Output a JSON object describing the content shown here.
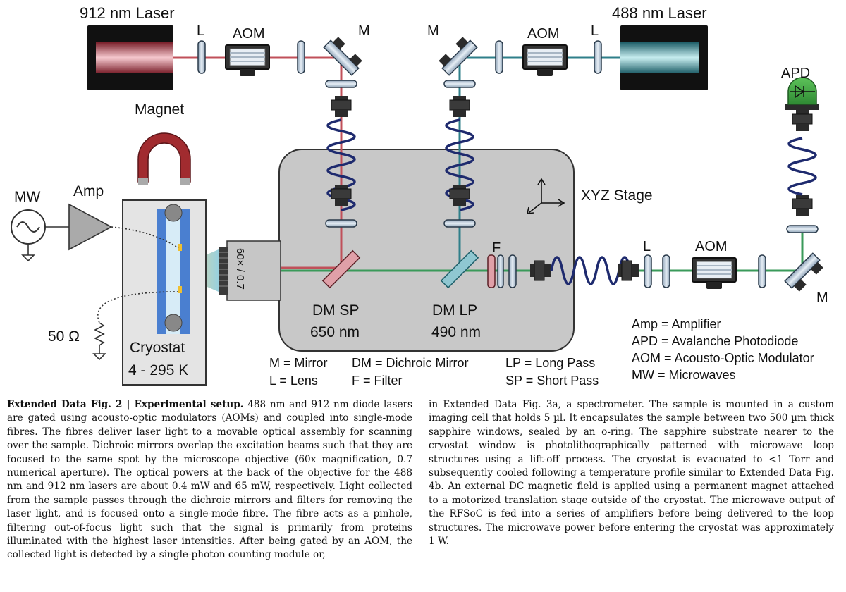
{
  "figure": {
    "lasers": {
      "left": "912 nm Laser",
      "right": "488 nm Laser"
    },
    "abbr": {
      "lens": "L",
      "mirror": "M",
      "aom": "AOM",
      "filter": "F",
      "apd": "APD",
      "amp": "Amp",
      "mw": "MW"
    },
    "magnet": "Magnet",
    "resistor": "50 Ω",
    "cryostat": {
      "name": "Cryostat",
      "range": "4 - 295 K"
    },
    "objective": "60× / 0.7",
    "stage": "XYZ Stage",
    "dm_sp": {
      "name": "DM SP",
      "wl": "650 nm"
    },
    "dm_lp": {
      "name": "DM LP",
      "wl": "490 nm"
    },
    "legend_bottom": [
      "M = Mirror",
      "L = Lens",
      "DM = Dichroic Mirror",
      "F = Filter",
      "LP = Long Pass",
      "SP = Short Pass"
    ],
    "legend_right": [
      "Amp = Amplifier",
      "APD = Avalanche Photodiode",
      "AOM = Acousto-Optic Modulator",
      "MW = Microwaves"
    ],
    "colors": {
      "red_beam": "#c0505a",
      "green_beam": "#3a9a5a",
      "teal_beam": "#2f7f8a",
      "fibre": "#1e2a6e",
      "stage": "#c8c8c8",
      "magnet": "#a12b2f"
    }
  },
  "caption": {
    "label": "Extended Data Fig. 2 | Experimental setup.",
    "left_text": "488 nm and 912 nm diode lasers are gated using acousto-optic modulators (AOMs) and coupled into single-mode fibres. The fibres deliver laser light to a movable optical assembly for scanning over the sample. Dichroic mirrors overlap the excitation beams such that they are focused to the same spot by the microscope objective (60x magnification, 0.7 numerical aperture). The optical powers at the back of the objective for the 488 nm and 912 nm lasers are about 0.4 mW and 65 mW, respectively. Light collected from the sample passes through the dichroic mirrors and filters for removing the laser light, and is focused onto a single-mode fibre. The fibre acts as a pinhole, filtering out-of-focus light such that the signal is primarily from proteins illuminated with the highest laser intensities. After being gated by an AOM, the collected light is detected by a single-photon counting module or,",
    "right_text": "in Extended Data Fig. 3a, a spectrometer. The sample is mounted in a custom imaging cell that holds 5 µl. It encapsulates the sample between two 500 µm thick sapphire windows, sealed by an o-ring. The sapphire substrate nearer to the cryostat window is photolithographically patterned with microwave loop structures using a lift-off process. The cryostat is evacuated to <1 Torr and subsequently cooled following a temperature profile similar to Extended Data Fig. 4b. An external DC magnetic field is applied using a permanent magnet attached to a motorized translation stage outside of the cryostat. The microwave output of the RFSoC is fed into a series of amplifiers before being delivered to the loop structures. The microwave power before entering the cryostat was approximately 1 W."
  }
}
